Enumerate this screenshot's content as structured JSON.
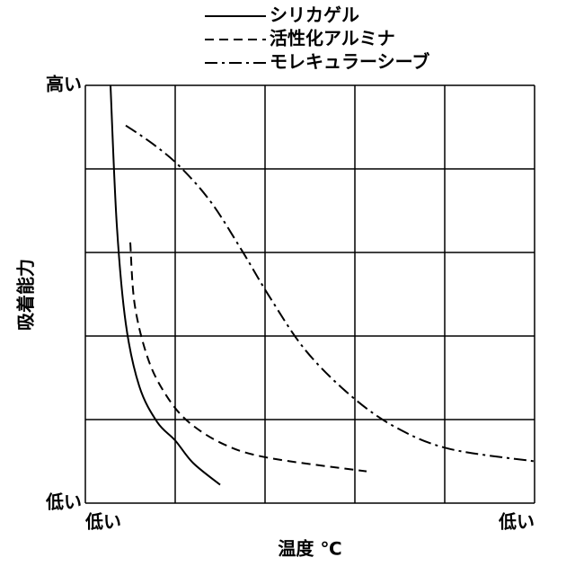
{
  "chart_data": {
    "type": "line",
    "xlabel": "温度 ℃",
    "ylabel": "吸着能力",
    "xlim": [
      0,
      5
    ],
    "ylim": [
      0,
      5
    ],
    "xticks": [
      {
        "value": 0,
        "label": "低い"
      },
      {
        "value": 5,
        "label": "低い"
      }
    ],
    "yticks": [
      {
        "value": 0,
        "label": "低い"
      },
      {
        "value": 5,
        "label": "高い"
      }
    ],
    "xgrid": [
      0,
      1,
      2,
      3,
      4,
      5
    ],
    "ygrid": [
      0,
      1,
      2,
      3,
      4,
      5
    ],
    "grid": true,
    "series": [
      {
        "name": "シリカゲル",
        "color": "#000000",
        "style": "solid",
        "x": [
          0.28,
          0.35,
          0.45,
          0.6,
          0.8,
          1.0,
          1.2,
          1.5
        ],
        "values": [
          5.0,
          3.33,
          2.15,
          1.4,
          0.97,
          0.75,
          0.48,
          0.22
        ]
      },
      {
        "name": "活性化アルミナ",
        "color": "#000000",
        "style": "dashed",
        "x": [
          0.5,
          0.55,
          0.7,
          0.9,
          1.15,
          1.55,
          2.05,
          3.13
        ],
        "values": [
          3.12,
          2.37,
          1.72,
          1.29,
          0.97,
          0.7,
          0.54,
          0.38
        ]
      },
      {
        "name": "モレキュラーシーブ",
        "color": "#000000",
        "style": "dashdot",
        "x": [
          0.45,
          0.75,
          1.05,
          1.4,
          1.75,
          2.05,
          2.45,
          2.95,
          3.45,
          4.05,
          5.0
        ],
        "values": [
          4.52,
          4.3,
          4.03,
          3.6,
          3.01,
          2.47,
          1.83,
          1.29,
          0.91,
          0.65,
          0.5
        ]
      }
    ]
  }
}
